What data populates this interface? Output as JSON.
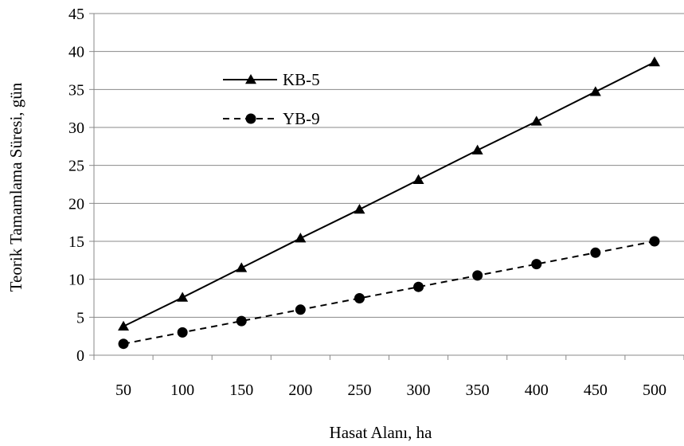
{
  "chart_data": {
    "type": "line",
    "title": "",
    "xlabel": "Hasat Alanı, ha",
    "ylabel": "Teorik Tamamlama  Süresi, gün",
    "categories": [
      "50",
      "100",
      "150",
      "200",
      "250",
      "300",
      "350",
      "400",
      "450",
      "500"
    ],
    "ylim": [
      0,
      45
    ],
    "yticks": [
      "0",
      "5",
      "10",
      "15",
      "20",
      "25",
      "30",
      "35",
      "40",
      "45"
    ],
    "grid": "horizontal",
    "legend_position": "top-left",
    "series": [
      {
        "name": "KB-5",
        "values": [
          3.8,
          7.6,
          11.5,
          15.4,
          19.2,
          23.1,
          27.0,
          30.8,
          34.7,
          38.6
        ],
        "marker": "triangle",
        "line_style": "solid",
        "color": "#000000"
      },
      {
        "name": "YB-9",
        "values": [
          1.5,
          3.0,
          4.5,
          6.0,
          7.5,
          9.0,
          10.5,
          12.0,
          13.5,
          15.0
        ],
        "marker": "circle",
        "line_style": "dashed",
        "color": "#000000"
      }
    ]
  }
}
